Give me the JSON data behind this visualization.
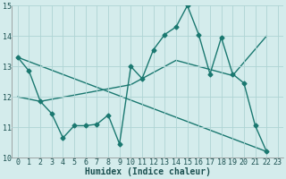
{
  "xlabel": "Humidex (Indice chaleur)",
  "xlim": [
    -0.5,
    23.5
  ],
  "ylim": [
    10,
    15
  ],
  "xticks": [
    0,
    1,
    2,
    3,
    4,
    5,
    6,
    7,
    8,
    9,
    10,
    11,
    12,
    13,
    14,
    15,
    16,
    17,
    18,
    19,
    20,
    21,
    22,
    23
  ],
  "yticks": [
    10,
    11,
    12,
    13,
    14,
    15
  ],
  "background_color": "#d4ecec",
  "grid_color": "#aed4d4",
  "line_color": "#1a7870",
  "line1_x": [
    0,
    1,
    2,
    3,
    4,
    5,
    6,
    7,
    8,
    9,
    10,
    11,
    12,
    13,
    14,
    15,
    16,
    17,
    18,
    19,
    20,
    21,
    22
  ],
  "line1_y": [
    13.3,
    12.85,
    11.85,
    11.45,
    10.65,
    11.05,
    11.05,
    11.1,
    11.4,
    10.45,
    13.0,
    12.6,
    13.55,
    14.05,
    14.3,
    15.0,
    14.05,
    12.75,
    13.95,
    12.75,
    12.45,
    11.05,
    10.2
  ],
  "line2_x": [
    0,
    22
  ],
  "line2_y": [
    13.3,
    10.2
  ],
  "line3_x": [
    0,
    2,
    10,
    14,
    19,
    22
  ],
  "line3_y": [
    12.0,
    11.85,
    12.4,
    13.2,
    12.7,
    14.0
  ],
  "tick_color": "#1a5050",
  "xlabel_color": "#1a5050",
  "xlabel_fontsize": 7,
  "tick_fontsize": 6,
  "marker": "D",
  "markersize": 2.5,
  "linewidth": 1.0
}
